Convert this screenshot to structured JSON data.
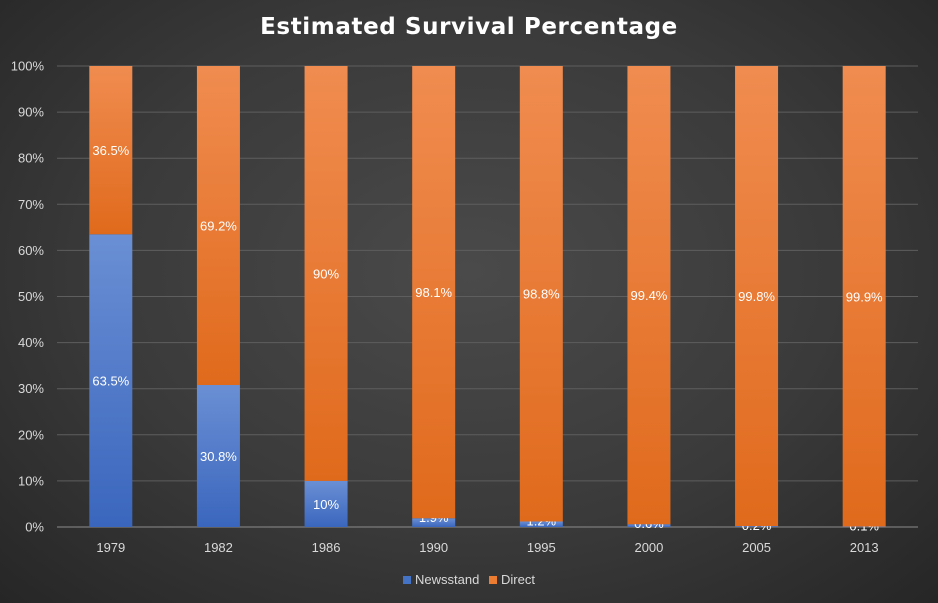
{
  "chart_data": {
    "type": "bar",
    "stacked": "100%",
    "title": "Estimated Survival Percentage",
    "categories": [
      "1979",
      "1982",
      "1986",
      "1990",
      "1995",
      "2000",
      "2005",
      "2013"
    ],
    "series": [
      {
        "name": "Newsstand",
        "color": "#4472c4",
        "values": [
          63.5,
          30.8,
          10,
          1.9,
          1.2,
          0.6,
          0.2,
          0.1
        ],
        "labels": [
          "63.5%",
          "30.8%",
          "10%",
          "1.9%",
          "1.2%",
          "0.6%",
          "0.2%",
          "0.1%"
        ]
      },
      {
        "name": "Direct",
        "color": "#ed7d31",
        "values": [
          36.5,
          69.2,
          90,
          98.1,
          98.8,
          99.4,
          99.8,
          99.9
        ],
        "labels": [
          "36.5%",
          "69.2%",
          "90%",
          "98.1%",
          "98.8%",
          "99.4%",
          "99.8%",
          "99.9%"
        ]
      }
    ],
    "yticks": [
      "0%",
      "10%",
      "20%",
      "30%",
      "40%",
      "50%",
      "60%",
      "70%",
      "80%",
      "90%",
      "100%"
    ],
    "ylim": [
      0,
      100
    ],
    "grid": true,
    "legend_position": "bottom"
  }
}
